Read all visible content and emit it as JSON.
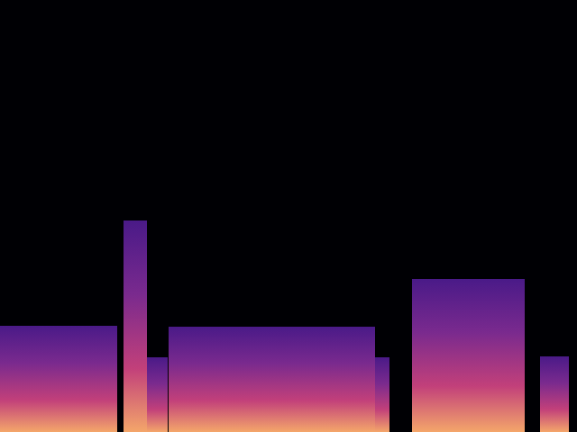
{
  "chart_data": {
    "type": "spectrogram",
    "xlim": [
      0,
      640
    ],
    "ylim": [
      0,
      480
    ],
    "tick_labels": false,
    "segments": [
      {
        "start": 0,
        "end": 130,
        "top": 118
      },
      {
        "start": 137,
        "end": 163,
        "top": 235
      },
      {
        "start": 163,
        "end": 186,
        "top": 83
      },
      {
        "start": 187,
        "end": 416,
        "top": 117
      },
      {
        "start": 416,
        "end": 432,
        "top": 83
      },
      {
        "start": 457,
        "end": 582,
        "top": 170
      },
      {
        "start": 599,
        "end": 631,
        "top": 84
      }
    ]
  }
}
